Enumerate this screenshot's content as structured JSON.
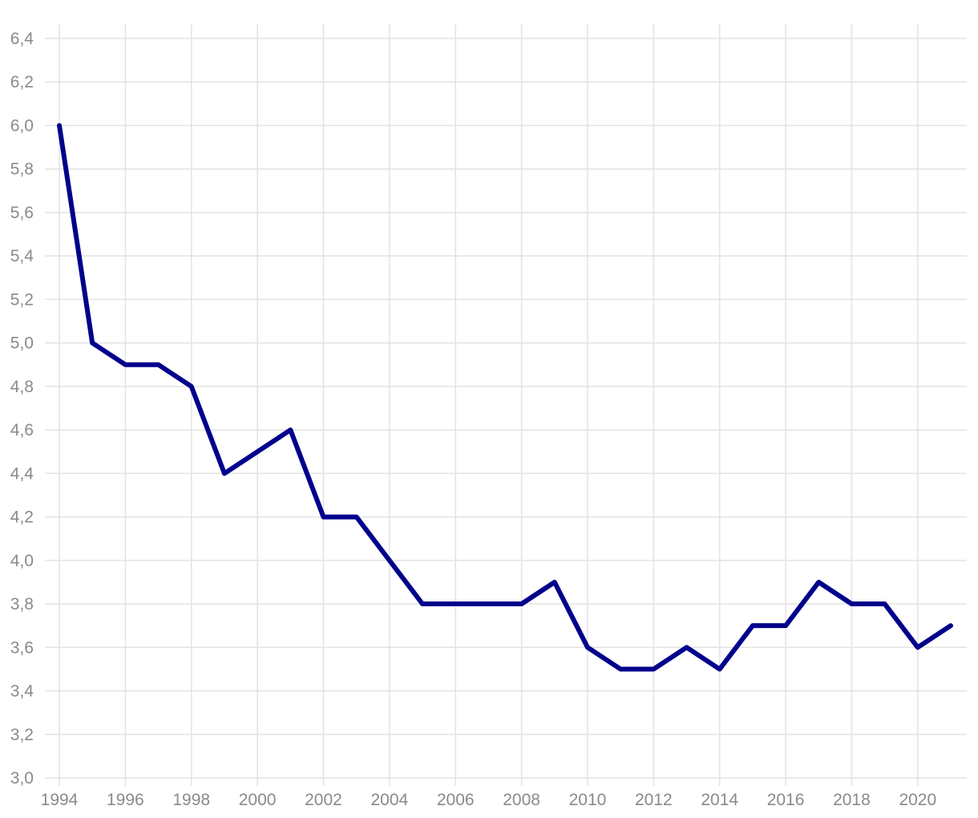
{
  "chart_data": {
    "type": "line",
    "title": "",
    "xlabel": "",
    "ylabel": "",
    "x": [
      1994,
      1995,
      1996,
      1997,
      1998,
      1999,
      2000,
      2001,
      2002,
      2003,
      2004,
      2005,
      2006,
      2007,
      2008,
      2009,
      2010,
      2011,
      2012,
      2013,
      2014,
      2015,
      2016,
      2017,
      2018,
      2019,
      2020,
      2021
    ],
    "series": [
      {
        "color": "#00008b",
        "values": [
          6.0,
          5.0,
          4.9,
          4.9,
          4.8,
          4.4,
          4.5,
          4.6,
          4.2,
          4.2,
          4.0,
          3.8,
          3.8,
          3.8,
          3.8,
          3.9,
          3.6,
          3.5,
          3.5,
          3.6,
          3.5,
          3.7,
          3.7,
          3.9,
          3.8,
          3.8,
          3.6,
          3.7
        ]
      }
    ],
    "xlim": [
      1994,
      2021
    ],
    "ylim": [
      3.0,
      6.4
    ],
    "x_ticks": [
      "1994",
      "1996",
      "1998",
      "2000",
      "2002",
      "2004",
      "2006",
      "2008",
      "2010",
      "2012",
      "2014",
      "2016",
      "2018",
      "2020"
    ],
    "y_ticks": [
      "3,0",
      "3,2",
      "3,4",
      "3,6",
      "3,8",
      "4,0",
      "4,2",
      "4,4",
      "4,6",
      "4,8",
      "5,0",
      "5,2",
      "5,4",
      "5,6",
      "5,8",
      "6,0",
      "6,2",
      "6,4"
    ],
    "grid": true,
    "decimal_separator": ",",
    "colors": {
      "grid": "#e3e3e3",
      "tick_label": "#8a8a8a",
      "background": "#ffffff"
    }
  }
}
